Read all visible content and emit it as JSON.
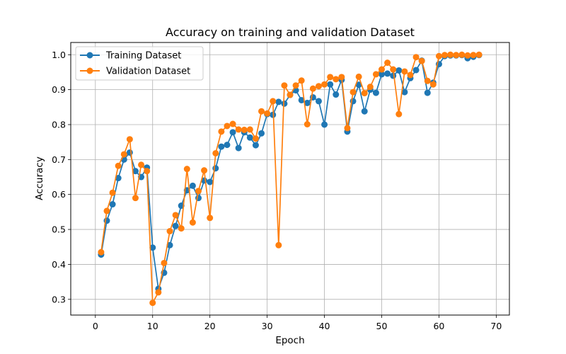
{
  "chart_data": {
    "type": "line",
    "title": "Accuracy on training and validation Dataset",
    "xlabel": "Epoch",
    "ylabel": "Accuracy",
    "xlim": [
      -4.3,
      72.3
    ],
    "ylim": [
      0.255,
      1.035
    ],
    "x_ticks": [
      0,
      10,
      20,
      30,
      40,
      50,
      60,
      70
    ],
    "y_ticks": [
      0.3,
      0.4,
      0.5,
      0.6,
      0.7,
      0.8,
      0.9,
      1.0
    ],
    "x_tick_labels": [
      "0",
      "10",
      "20",
      "30",
      "40",
      "50",
      "60",
      "70"
    ],
    "y_tick_labels": [
      "0.3",
      "0.4",
      "0.5",
      "0.6",
      "0.7",
      "0.8",
      "0.9",
      "1.0"
    ],
    "grid": true,
    "legend_position": "upper-left",
    "x": [
      1,
      2,
      3,
      4,
      5,
      6,
      7,
      8,
      9,
      10,
      11,
      12,
      13,
      14,
      15,
      16,
      17,
      18,
      19,
      20,
      21,
      22,
      23,
      24,
      25,
      26,
      27,
      28,
      29,
      30,
      31,
      32,
      33,
      34,
      35,
      36,
      37,
      38,
      39,
      40,
      41,
      42,
      43,
      44,
      45,
      46,
      47,
      48,
      49,
      50,
      51,
      52,
      53,
      54,
      55,
      56,
      57,
      58,
      59,
      60,
      61,
      62,
      63,
      64,
      65,
      66,
      67
    ],
    "series": [
      {
        "name": "Training Dataset",
        "color": "#1f77b4",
        "values": [
          0.428,
          0.525,
          0.572,
          0.647,
          0.7,
          0.72,
          0.667,
          0.65,
          0.677,
          0.448,
          0.33,
          0.376,
          0.455,
          0.51,
          0.568,
          0.612,
          0.625,
          0.59,
          0.64,
          0.636,
          0.675,
          0.737,
          0.742,
          0.778,
          0.733,
          0.778,
          0.763,
          0.741,
          0.775,
          0.83,
          0.828,
          0.865,
          0.86,
          0.885,
          0.898,
          0.87,
          0.862,
          0.878,
          0.867,
          0.8,
          0.915,
          0.886,
          0.928,
          0.78,
          0.867,
          0.914,
          0.838,
          0.9,
          0.891,
          0.944,
          0.946,
          0.94,
          0.955,
          0.893,
          0.933,
          0.956,
          0.983,
          0.891,
          0.92,
          0.973,
          0.996,
          0.998,
          0.998,
          0.999,
          0.99,
          0.994,
          0.999
        ]
      },
      {
        "name": "Validation Dataset",
        "color": "#ff7f0e",
        "values": [
          0.435,
          0.553,
          0.605,
          0.682,
          0.715,
          0.758,
          0.59,
          0.685,
          0.667,
          0.29,
          0.32,
          0.404,
          0.495,
          0.541,
          0.503,
          0.673,
          0.52,
          0.61,
          0.669,
          0.533,
          0.718,
          0.78,
          0.796,
          0.802,
          0.786,
          0.785,
          0.786,
          0.76,
          0.838,
          0.832,
          0.867,
          0.455,
          0.912,
          0.885,
          0.912,
          0.926,
          0.801,
          0.903,
          0.91,
          0.915,
          0.936,
          0.93,
          0.936,
          0.79,
          0.893,
          0.937,
          0.89,
          0.908,
          0.944,
          0.958,
          0.977,
          0.958,
          0.83,
          0.952,
          0.942,
          0.993,
          0.982,
          0.925,
          0.915,
          0.996,
          0.999,
          1.0,
          0.999,
          1.0,
          0.998,
          0.999,
          1.0
        ]
      }
    ]
  }
}
